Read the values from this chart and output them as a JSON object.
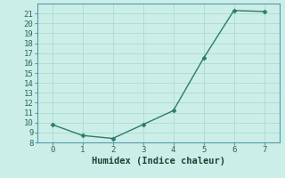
{
  "x": [
    0,
    1,
    2,
    3,
    4,
    5,
    6,
    7
  ],
  "y": [
    9.8,
    8.7,
    8.4,
    9.8,
    11.2,
    16.5,
    21.3,
    21.2
  ],
  "xlabel": "Humidex (Indice chaleur)",
  "ylim": [
    8,
    22
  ],
  "xlim": [
    -0.5,
    7.5
  ],
  "yticks": [
    8,
    9,
    10,
    11,
    12,
    13,
    14,
    15,
    16,
    17,
    18,
    19,
    20,
    21
  ],
  "xticks": [
    0,
    1,
    2,
    3,
    4,
    5,
    6,
    7
  ],
  "line_color": "#2d7a6e",
  "bg_color": "#cceee8",
  "grid_color": "#aaddcc",
  "spine_color": "#5599aa",
  "tick_label_color": "#2a6655",
  "xlabel_color": "#1a4433",
  "markersize": 2.5,
  "linewidth": 1.0,
  "tick_fontsize": 6.5,
  "xlabel_fontsize": 7.5
}
